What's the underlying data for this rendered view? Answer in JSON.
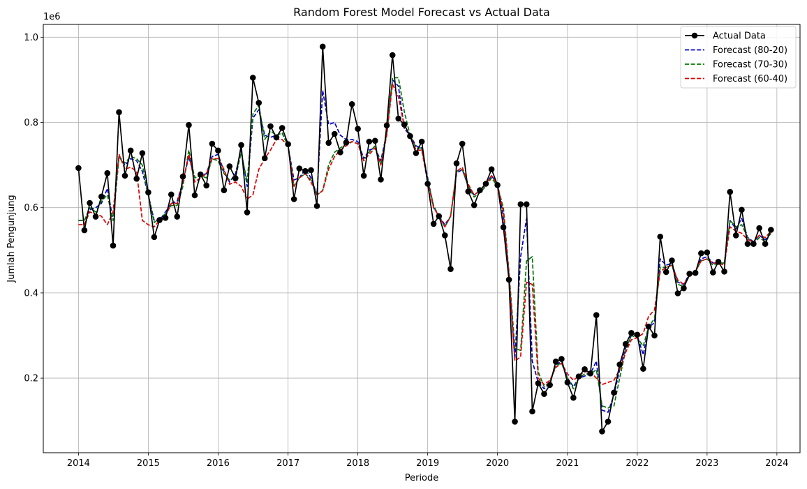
{
  "chart_data": {
    "type": "line",
    "title": "Random Forest Model Forecast vs Actual Data",
    "xlabel": "Periode",
    "ylabel": "Jumlah Pengunjung",
    "y_offset_label": "1e6",
    "xlim": [
      "2013-07-01",
      "2024-05-01"
    ],
    "ylim": [
      0.025,
      1.03
    ],
    "x_ticks": [
      "2014",
      "2015",
      "2016",
      "2017",
      "2018",
      "2019",
      "2020",
      "2021",
      "2022",
      "2023",
      "2024"
    ],
    "y_ticks": [
      "0.2",
      "0.4",
      "0.6",
      "0.8",
      "1.0"
    ],
    "grid": true,
    "legend_position": "top-right",
    "dates": [
      "2014-01",
      "2014-02",
      "2014-03",
      "2014-04",
      "2014-05",
      "2014-06",
      "2014-07",
      "2014-08",
      "2014-09",
      "2014-10",
      "2014-11",
      "2014-12",
      "2015-01",
      "2015-02",
      "2015-03",
      "2015-04",
      "2015-05",
      "2015-06",
      "2015-07",
      "2015-08",
      "2015-09",
      "2015-10",
      "2015-11",
      "2015-12",
      "2016-01",
      "2016-02",
      "2016-03",
      "2016-04",
      "2016-05",
      "2016-06",
      "2016-07",
      "2016-08",
      "2016-09",
      "2016-10",
      "2016-11",
      "2016-12",
      "2017-01",
      "2017-02",
      "2017-03",
      "2017-04",
      "2017-05",
      "2017-06",
      "2017-07",
      "2017-08",
      "2017-09",
      "2017-10",
      "2017-11",
      "2017-12",
      "2018-01",
      "2018-02",
      "2018-03",
      "2018-04",
      "2018-05",
      "2018-06",
      "2018-07",
      "2018-08",
      "2018-09",
      "2018-10",
      "2018-11",
      "2018-12",
      "2019-01",
      "2019-02",
      "2019-03",
      "2019-04",
      "2019-05",
      "2019-06",
      "2019-07",
      "2019-08",
      "2019-09",
      "2019-10",
      "2019-11",
      "2019-12",
      "2020-01",
      "2020-02",
      "2020-03",
      "2020-04",
      "2020-05",
      "2020-06",
      "2020-07",
      "2020-08",
      "2020-09",
      "2020-10",
      "2020-11",
      "2020-12",
      "2021-01",
      "2021-02",
      "2021-03",
      "2021-04",
      "2021-05",
      "2021-06",
      "2021-07",
      "2021-08",
      "2021-09",
      "2021-10",
      "2021-11",
      "2021-12",
      "2022-01",
      "2022-02",
      "2022-03",
      "2022-04",
      "2022-05",
      "2022-06",
      "2022-07",
      "2022-08",
      "2022-09",
      "2022-10",
      "2022-11",
      "2022-12",
      "2023-01",
      "2023-02",
      "2023-03",
      "2023-04",
      "2023-05",
      "2023-06",
      "2023-07",
      "2023-08",
      "2023-09",
      "2023-10",
      "2023-11",
      "2023-12"
    ],
    "series": [
      {
        "name": "Actual Data",
        "color": "#000000",
        "style": "solid-marker",
        "values": [
          0.693,
          0.547,
          0.611,
          0.579,
          0.626,
          0.681,
          0.511,
          0.824,
          0.675,
          0.734,
          0.668,
          0.728,
          0.636,
          0.531,
          0.571,
          0.576,
          0.631,
          0.579,
          0.673,
          0.794,
          0.629,
          0.678,
          0.652,
          0.75,
          0.734,
          0.641,
          0.697,
          0.669,
          0.747,
          0.589,
          0.905,
          0.846,
          0.716,
          0.791,
          0.765,
          0.787,
          0.749,
          0.62,
          0.692,
          0.686,
          0.688,
          0.604,
          0.978,
          0.752,
          0.773,
          0.73,
          0.753,
          0.843,
          0.785,
          0.675,
          0.755,
          0.757,
          0.666,
          0.793,
          0.958,
          0.809,
          0.795,
          0.768,
          0.728,
          0.755,
          0.656,
          0.562,
          0.58,
          0.535,
          0.456,
          0.704,
          0.75,
          0.638,
          0.606,
          0.641,
          0.656,
          0.69,
          0.653,
          0.554,
          0.431,
          0.098,
          0.608,
          0.608,
          0.122,
          0.188,
          0.163,
          0.184,
          0.239,
          0.245,
          0.19,
          0.154,
          0.204,
          0.221,
          0.211,
          0.348,
          0.075,
          0.098,
          0.166,
          0.232,
          0.28,
          0.306,
          0.302,
          0.222,
          0.321,
          0.3,
          0.532,
          0.449,
          0.476,
          0.399,
          0.411,
          0.445,
          0.447,
          0.493,
          0.495,
          0.448,
          0.473,
          0.45,
          0.637,
          0.535,
          0.595,
          0.515,
          0.515,
          0.552,
          0.515,
          0.548
        ]
      },
      {
        "name": "Forecast (80-20)",
        "color": "#0000cc",
        "style": "dashed",
        "values": [
          0.57,
          0.57,
          0.595,
          0.6,
          0.61,
          0.645,
          0.57,
          0.72,
          0.7,
          0.715,
          0.71,
          0.685,
          0.63,
          0.57,
          0.57,
          0.59,
          0.61,
          0.615,
          0.66,
          0.72,
          0.67,
          0.675,
          0.68,
          0.72,
          0.725,
          0.685,
          0.66,
          0.68,
          0.735,
          0.65,
          0.81,
          0.83,
          0.77,
          0.765,
          0.77,
          0.775,
          0.745,
          0.665,
          0.67,
          0.69,
          0.67,
          0.63,
          0.875,
          0.795,
          0.8,
          0.77,
          0.76,
          0.76,
          0.755,
          0.715,
          0.735,
          0.74,
          0.71,
          0.775,
          0.9,
          0.885,
          0.785,
          0.77,
          0.745,
          0.74,
          0.67,
          0.6,
          0.58,
          0.56,
          0.58,
          0.68,
          0.69,
          0.65,
          0.63,
          0.64,
          0.655,
          0.675,
          0.655,
          0.58,
          0.44,
          0.245,
          0.485,
          0.575,
          0.24,
          0.19,
          0.175,
          0.19,
          0.23,
          0.24,
          0.2,
          0.18,
          0.2,
          0.205,
          0.21,
          0.24,
          0.125,
          0.12,
          0.16,
          0.22,
          0.27,
          0.3,
          0.3,
          0.255,
          0.32,
          0.33,
          0.48,
          0.465,
          0.47,
          0.425,
          0.42,
          0.445,
          0.45,
          0.48,
          0.485,
          0.47,
          0.47,
          0.47,
          0.57,
          0.55,
          0.575,
          0.53,
          0.52,
          0.535,
          0.525,
          0.54
        ]
      },
      {
        "name": "Forecast (70-30)",
        "color": "#007700",
        "style": "dashed",
        "values": [
          0.57,
          0.57,
          0.6,
          0.59,
          0.615,
          0.63,
          0.57,
          0.72,
          0.705,
          0.72,
          0.715,
          0.7,
          0.63,
          0.565,
          0.575,
          0.585,
          0.605,
          0.605,
          0.65,
          0.735,
          0.67,
          0.675,
          0.67,
          0.715,
          0.71,
          0.68,
          0.665,
          0.67,
          0.73,
          0.66,
          0.82,
          0.84,
          0.76,
          0.78,
          0.77,
          0.775,
          0.745,
          0.65,
          0.67,
          0.68,
          0.665,
          0.63,
          0.64,
          0.7,
          0.73,
          0.74,
          0.75,
          0.755,
          0.75,
          0.71,
          0.73,
          0.745,
          0.7,
          0.775,
          0.905,
          0.905,
          0.825,
          0.77,
          0.74,
          0.74,
          0.665,
          0.605,
          0.58,
          0.555,
          0.58,
          0.685,
          0.69,
          0.65,
          0.625,
          0.635,
          0.65,
          0.67,
          0.65,
          0.6,
          0.45,
          0.27,
          0.265,
          0.475,
          0.485,
          0.215,
          0.18,
          0.19,
          0.23,
          0.235,
          0.2,
          0.175,
          0.2,
          0.21,
          0.21,
          0.22,
          0.135,
          0.13,
          0.135,
          0.2,
          0.265,
          0.3,
          0.295,
          0.275,
          0.32,
          0.34,
          0.46,
          0.46,
          0.465,
          0.42,
          0.415,
          0.44,
          0.45,
          0.475,
          0.48,
          0.465,
          0.47,
          0.47,
          0.57,
          0.555,
          0.56,
          0.53,
          0.515,
          0.53,
          0.52,
          0.54
        ]
      },
      {
        "name": "Forecast (60-40)",
        "color": "#dd0000",
        "style": "dashed",
        "values": [
          0.56,
          0.56,
          0.59,
          0.585,
          0.58,
          0.56,
          0.59,
          0.725,
          0.69,
          0.695,
          0.685,
          0.57,
          0.56,
          0.555,
          0.57,
          0.58,
          0.61,
          0.61,
          0.66,
          0.725,
          0.66,
          0.67,
          0.68,
          0.715,
          0.715,
          0.69,
          0.655,
          0.66,
          0.65,
          0.62,
          0.63,
          0.69,
          0.715,
          0.735,
          0.76,
          0.76,
          0.745,
          0.65,
          0.67,
          0.68,
          0.66,
          0.63,
          0.64,
          0.69,
          0.72,
          0.735,
          0.745,
          0.755,
          0.75,
          0.71,
          0.725,
          0.74,
          0.7,
          0.77,
          0.89,
          0.86,
          0.79,
          0.77,
          0.735,
          0.735,
          0.66,
          0.6,
          0.58,
          0.555,
          0.58,
          0.685,
          0.695,
          0.655,
          0.63,
          0.64,
          0.655,
          0.675,
          0.655,
          0.59,
          0.445,
          0.24,
          0.25,
          0.425,
          0.42,
          0.2,
          0.185,
          0.195,
          0.225,
          0.235,
          0.21,
          0.195,
          0.205,
          0.215,
          0.215,
          0.2,
          0.185,
          0.19,
          0.195,
          0.22,
          0.26,
          0.29,
          0.295,
          0.305,
          0.345,
          0.36,
          0.45,
          0.46,
          0.465,
          0.43,
          0.42,
          0.44,
          0.45,
          0.475,
          0.48,
          0.47,
          0.47,
          0.465,
          0.555,
          0.545,
          0.54,
          0.525,
          0.52,
          0.535,
          0.53,
          0.545
        ]
      }
    ]
  }
}
